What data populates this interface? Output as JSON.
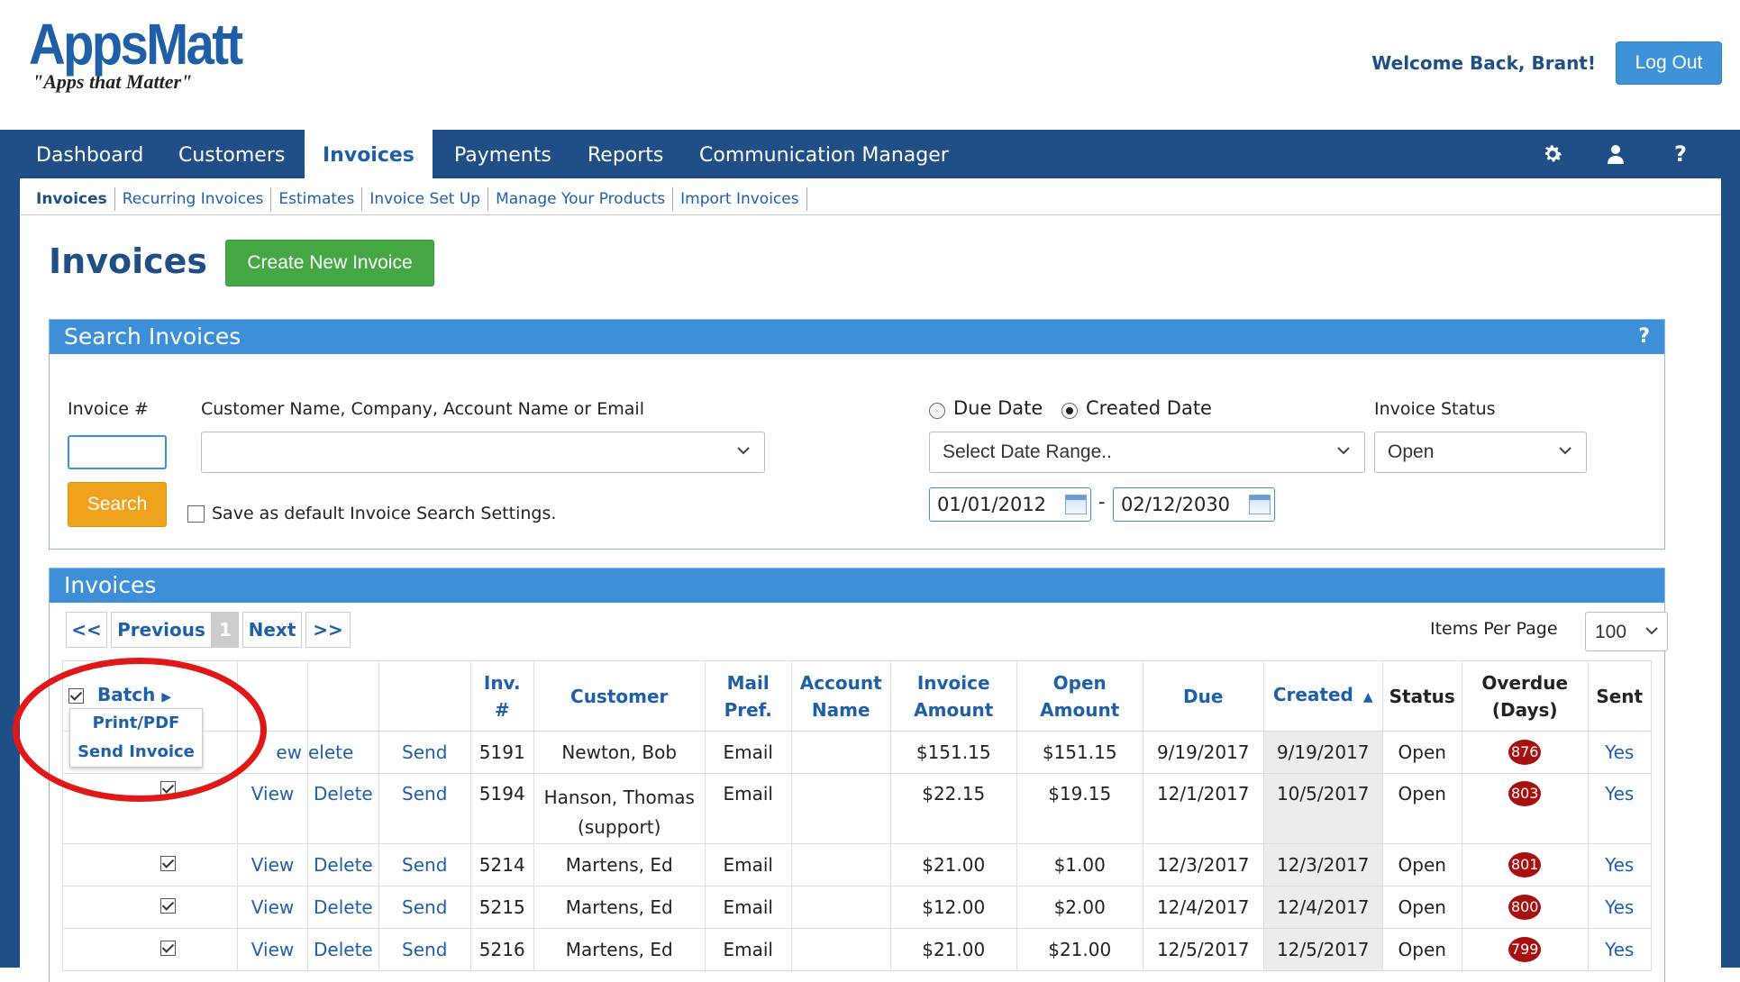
{
  "logo": {
    "main": "AppsMatt",
    "tagline": "\"Apps that Matter\""
  },
  "header": {
    "welcome": "Welcome Back, Brant!",
    "logout": "Log Out"
  },
  "nav": {
    "items": [
      "Dashboard",
      "Customers",
      "Invoices",
      "Payments",
      "Reports",
      "Communication Manager"
    ],
    "active": "Invoices",
    "icons": [
      "gear-icon",
      "user-icon",
      "help-icon"
    ],
    "help_glyph": "?"
  },
  "subnav": [
    "Invoices",
    "Recurring Invoices",
    "Estimates",
    "Invoice Set Up",
    "Manage Your Products",
    "Import Invoices"
  ],
  "page": {
    "title": "Invoices",
    "create_button": "Create New Invoice"
  },
  "search": {
    "title": "Search Invoices",
    "help": "?",
    "invoice_label": "Invoice #",
    "invoice_value": "",
    "customer_label": "Customer Name, Company, Account Name or Email",
    "customer_value": "",
    "radio_due": "Due Date",
    "radio_created": "Created Date",
    "selected_radio": "Created Date",
    "date_range_placeholder": "Select Date Range..",
    "status_label": "Invoice Status",
    "status_value": "Open",
    "search_button": "Search",
    "save_default": "Save as default Invoice Search Settings.",
    "date_from": "01/01/2012",
    "date_sep": "-",
    "date_to": "02/12/2030"
  },
  "invoices": {
    "title": "Invoices",
    "pager": {
      "first": "<<",
      "prev": "Previous",
      "current": "1",
      "next": "Next",
      "last": ">>"
    },
    "items_per_page_label": "Items Per Page",
    "items_per_page": "100",
    "columns": {
      "batch": "Batch",
      "inv_no_1": "Inv.",
      "inv_no_2": "#",
      "customer": "Customer",
      "mail_1": "Mail",
      "mail_2": "Pref.",
      "account_1": "Account",
      "account_2": "Name",
      "invoice_amt_1": "Invoice",
      "invoice_amt_2": "Amount",
      "open_amt_1": "Open",
      "open_amt_2": "Amount",
      "due": "Due",
      "created": "Created",
      "status": "Status",
      "overdue_1": "Overdue",
      "overdue_2": "(Days)",
      "sent": "Sent"
    },
    "batch_menu": [
      "Print/PDF",
      "Send Invoice"
    ],
    "row_actions": {
      "view": "View",
      "delete": "Delete",
      "send": "Send",
      "print": "Print/Pdf"
    },
    "first_row_view_fragment": "ew",
    "first_row_delete_fragment": "elete",
    "rows": [
      {
        "inv": "5191",
        "customer": "Newton, Bob",
        "customer_2": "",
        "mail": "Email",
        "account": "",
        "invoice_amt": "$151.15",
        "open_amt": "$151.15",
        "due": "9/19/2017",
        "created": "9/19/2017",
        "status": "Open",
        "overdue": "876",
        "sent": "Yes"
      },
      {
        "inv": "5194",
        "customer": "Hanson, Thomas",
        "customer_2": "(support)",
        "mail": "Email",
        "account": "",
        "invoice_amt": "$22.15",
        "open_amt": "$19.15",
        "due": "12/1/2017",
        "created": "10/5/2017",
        "status": "Open",
        "overdue": "803",
        "sent": "Yes"
      },
      {
        "inv": "5214",
        "customer": "Martens, Ed",
        "customer_2": "",
        "mail": "Email",
        "account": "",
        "invoice_amt": "$21.00",
        "open_amt": "$1.00",
        "due": "12/3/2017",
        "created": "12/3/2017",
        "status": "Open",
        "overdue": "801",
        "sent": "Yes"
      },
      {
        "inv": "5215",
        "customer": "Martens, Ed",
        "customer_2": "",
        "mail": "Email",
        "account": "",
        "invoice_amt": "$12.00",
        "open_amt": "$2.00",
        "due": "12/4/2017",
        "created": "12/4/2017",
        "status": "Open",
        "overdue": "800",
        "sent": "Yes"
      },
      {
        "inv": "5216",
        "customer": "Martens, Ed",
        "customer_2": "",
        "mail": "Email",
        "account": "",
        "invoice_amt": "$21.00",
        "open_amt": "$21.00",
        "due": "12/5/2017",
        "created": "12/5/2017",
        "status": "Open",
        "overdue": "799",
        "sent": "Yes"
      }
    ]
  },
  "colors": {
    "brand": "#1f4f86",
    "accent": "#3d8fd8",
    "create": "#45a845",
    "search": "#f0a21c",
    "overdue": "#a81010",
    "annotation": "#e01818"
  }
}
